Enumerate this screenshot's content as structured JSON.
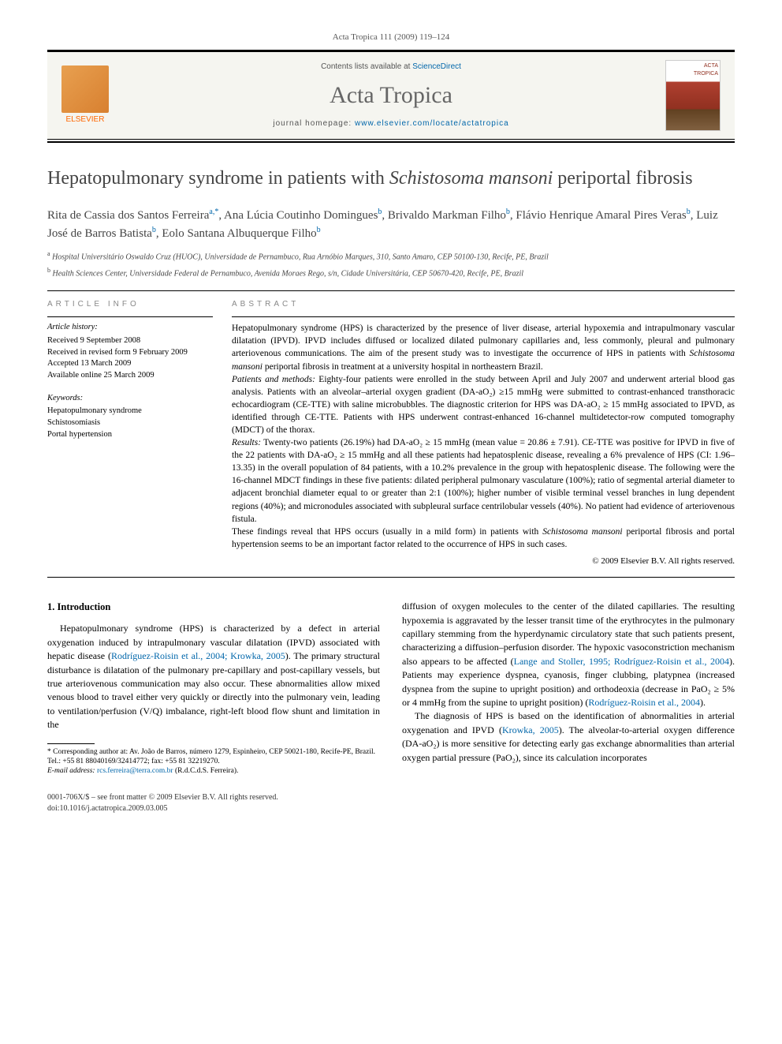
{
  "runningHeader": "Acta Tropica 111 (2009) 119–124",
  "masthead": {
    "contentsPrefix": "Contents lists available at ",
    "contentsLink": "ScienceDirect",
    "journalName": "Acta Tropica",
    "homepagePrefix": "journal homepage: ",
    "homepageUrl": "www.elsevier.com/locate/actatropica",
    "publisherLabel": "ELSEVIER",
    "coverLine1": "ACTA",
    "coverLine2": "TROPICA"
  },
  "title": {
    "pre": "Hepatopulmonary syndrome in patients with ",
    "italic": "Schistosoma mansoni",
    "post": " periportal fibrosis"
  },
  "authors": [
    {
      "name": "Rita de Cassia dos Santos Ferreira",
      "affil": "a",
      "corresponding": true
    },
    {
      "name": "Ana Lúcia Coutinho Domingues",
      "affil": "b"
    },
    {
      "name": "Brivaldo Markman Filho",
      "affil": "b"
    },
    {
      "name": "Flávio Henrique Amaral Pires Veras",
      "affil": "b"
    },
    {
      "name": "Luiz José de Barros Batista",
      "affil": "b"
    },
    {
      "name": "Eolo Santana Albuquerque Filho",
      "affil": "b"
    }
  ],
  "affiliations": [
    {
      "key": "a",
      "text": "Hospital Universitário Oswaldo Cruz (HUOC), Universidade de Pernambuco, Rua Arnóbio Marques, 310, Santo Amaro, CEP 50100-130, Recife, PE, Brazil"
    },
    {
      "key": "b",
      "text": "Health Sciences Center, Universidade Federal de Pernambuco, Avenida Moraes Rego, s/n, Cidade Universitária, CEP 50670-420, Recife, PE, Brazil"
    }
  ],
  "articleInfo": {
    "heading": "ARTICLE INFO",
    "historyLabel": "Article history:",
    "history": [
      "Received 9 September 2008",
      "Received in revised form 9 February 2009",
      "Accepted 13 March 2009",
      "Available online 25 March 2009"
    ],
    "keywordsLabel": "Keywords:",
    "keywords": [
      "Hepatopulmonary syndrome",
      "Schistosomiasis",
      "Portal hypertension"
    ]
  },
  "abstract": {
    "heading": "ABSTRACT",
    "paragraphs": [
      {
        "runIn": "",
        "prefix": "Hepatopulmonary syndrome (HPS) is characterized by the presence of liver disease, arterial hypoxemia and intrapulmonary vascular dilatation (IPVD). IPVD includes diffused or localized dilated pulmonary capillaries and, less commonly, pleural and pulmonary arteriovenous communications. The aim of the present study was to investigate the occurrence of HPS in patients with ",
        "italic": "Schistosoma mansoni",
        "suffix": " periportal fibrosis in treatment at a university hospital in northeastern Brazil."
      },
      {
        "runIn": "Patients and methods:",
        "text": " Eighty-four patients were enrolled in the study between April and July 2007 and underwent arterial blood gas analysis. Patients with an alveolar–arterial oxygen gradient (DA-aO₂) ≥15 mmHg were submitted to contrast-enhanced transthoracic echocardiogram (CE-TTE) with saline microbubbles. The diagnostic criterion for HPS was DA-aO₂ ≥ 15 mmHg associated to IPVD, as identified through CE-TTE. Patients with HPS underwent contrast-enhanced 16-channel multidetector-row computed tomography (MDCT) of the thorax."
      },
      {
        "runIn": "Results:",
        "text": " Twenty-two patients (26.19%) had DA-aO₂ ≥ 15 mmHg (mean value = 20.86 ± 7.91). CE-TTE was positive for IPVD in five of the 22 patients with DA-aO₂ ≥ 15 mmHg and all these patients had hepatosplenic disease, revealing a 6% prevalence of HPS (CI: 1.96–13.35) in the overall population of 84 patients, with a 10.2% prevalence in the group with hepatosplenic disease. The following were the 16-channel MDCT findings in these five patients: dilated peripheral pulmonary vasculature (100%); ratio of segmental arterial diameter to adjacent bronchial diameter equal to or greater than 2:1 (100%); higher number of visible terminal vessel branches in lung dependent regions (40%); and micronodules associated with subpleural surface centrilobular vessels (40%). No patient had evidence of arteriovenous fistula."
      },
      {
        "runIn": "",
        "prefix": "These findings reveal that HPS occurs (usually in a mild form) in patients with ",
        "italic": "Schistosoma mansoni",
        "suffix": " periportal fibrosis and portal hypertension seems to be an important factor related to the occurrence of HPS in such cases."
      }
    ],
    "copyright": "© 2009 Elsevier B.V. All rights reserved."
  },
  "body": {
    "introHeading": "1.  Introduction",
    "para1_pre": "Hepatopulmonary syndrome (HPS) is characterized by a defect in arterial oxygenation induced by intrapulmonary vascular dilatation (IPVD) associated with hepatic disease (",
    "para1_cite1": "Rodríguez-Roisin et al., 2004; Krowka, 2005",
    "para1_post": "). The primary structural disturbance is dilatation of the pulmonary pre-capillary and post-capillary vessels, but true arteriovenous communication may also occur. These abnormalities allow mixed venous blood to travel either very quickly or directly into the pulmonary vein, leading to ventilation/perfusion (V/Q) imbalance, right-left blood flow shunt and limitation in the",
    "para2_pre": "diffusion of oxygen molecules to the center of the dilated capillaries. The resulting hypoxemia is aggravated by the lesser transit time of the erythrocytes in the pulmonary capillary stemming from the hyperdynamic circulatory state that such patients present, characterizing a diffusion–perfusion disorder. The hypoxic vasoconstriction mechanism also appears to be affected (",
    "para2_cite1": "Lange and Stoller, 1995; Rodríguez-Roisin et al., 2004",
    "para2_mid": "). Patients may experience dyspnea, cyanosis, finger clubbing, platypnea (increased dyspnea from the supine to upright position) and orthodeoxia (decrease in PaO₂ ≥ 5% or 4 mmHg from the supine to upright position) (",
    "para2_cite2": "Rodríguez-Roisin et al., 2004",
    "para2_post": ").",
    "para3_pre": "The diagnosis of HPS is based on the identification of abnormalities in arterial oxygenation and IPVD (",
    "para3_cite1": "Krowka, 2005",
    "para3_post": "). The alveolar-to-arterial oxygen difference (DA-aO₂) is more sensitive for detecting early gas exchange abnormalities than arterial oxygen partial pressure (PaO₂), since its calculation incorporates"
  },
  "footnote": {
    "marker": "*",
    "text": "Corresponding author at: Av. João de Barros, número 1279, Espinheiro, CEP 50021-180, Recife-PE, Brazil. Tel.: +55 81 88040169/32414772; fax: +55 81 32219270.",
    "emailLabel": "E-mail address: ",
    "email": "rcs.ferreira@terra.com.br",
    "emailSuffix": " (R.d.C.d.S. Ferreira)."
  },
  "doi": {
    "line1": "0001-706X/$ – see front matter © 2009 Elsevier B.V. All rights reserved.",
    "line2": "doi:10.1016/j.actatropica.2009.03.005"
  },
  "colors": {
    "link": "#0066aa",
    "accent": "#ff6600",
    "mastheadBg": "#f5f5f0",
    "textMuted": "#555555"
  }
}
